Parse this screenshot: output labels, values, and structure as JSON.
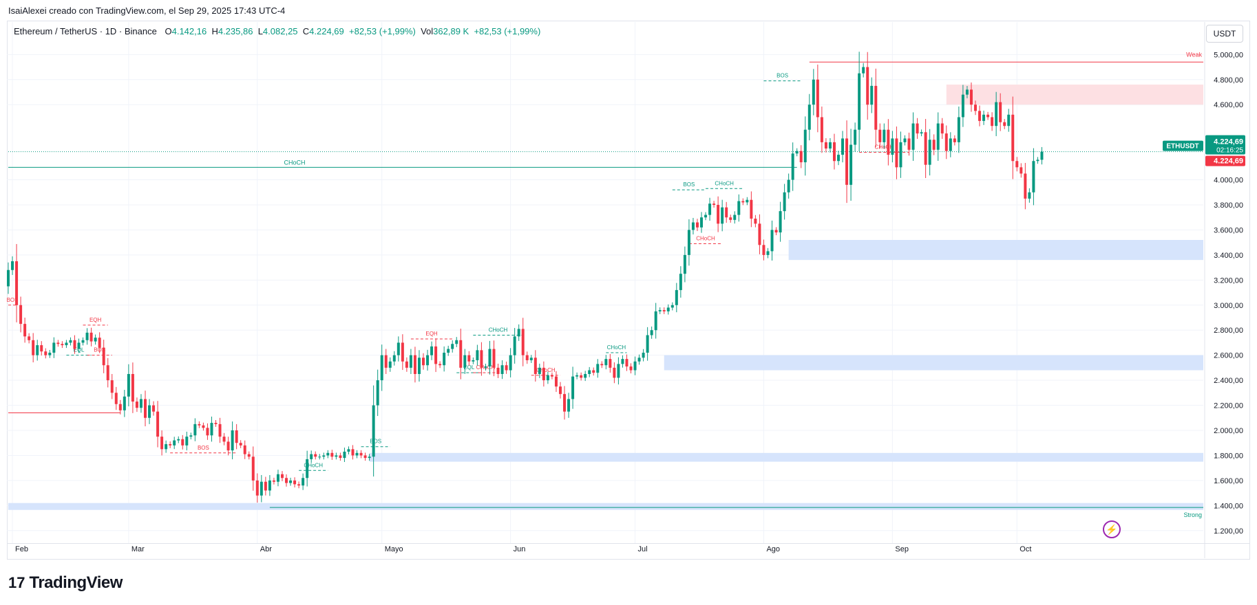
{
  "header": {
    "creator_note": "IsaiAlexei creado con TradingView.com, el Sep 29, 2025 17:43 UTC-4",
    "symbol": "Ethereum / TetherUS · 1D · Binance",
    "o_label": "O",
    "o_value": "4.142,16",
    "h_label": "H",
    "h_value": "4.235,86",
    "l_label": "L",
    "l_value": "4.082,25",
    "c_label": "C",
    "c_value": "4.224,69",
    "change": "+82,53 (+1,99%)",
    "vol_label": "Vol",
    "vol_value": "362,89 K",
    "vol_change": "+82,53 (+1,99%)"
  },
  "currency_unit": "USDT",
  "price_tag": {
    "symbol": "ETHUSDT",
    "price": "4.224,69",
    "countdown": "02:16:25",
    "price_red": "4.224,69"
  },
  "brand": {
    "name": "TradingView",
    "mark": "17"
  },
  "colors": {
    "up": "#089981",
    "down": "#f23645",
    "zone_blue": "#d6e4fc",
    "zone_red": "#fde0e3",
    "grid": "#f0f3fa"
  },
  "chart_data": {
    "type": "candlestick",
    "title": "Ethereum / TetherUS · 1D · Binance",
    "ylim": [
      1100,
      5150
    ],
    "y_ticks": [
      {
        "v": 5000,
        "label": "5.000,00"
      },
      {
        "v": 4800,
        "label": "4.800,00"
      },
      {
        "v": 4600,
        "label": "4.600,00"
      },
      {
        "v": 4000,
        "label": "4.000,00"
      },
      {
        "v": 3800,
        "label": "3.800,00"
      },
      {
        "v": 3600,
        "label": "3.600,00"
      },
      {
        "v": 3400,
        "label": "3.400,00"
      },
      {
        "v": 3200,
        "label": "3.200,00"
      },
      {
        "v": 3000,
        "label": "3.000,00"
      },
      {
        "v": 2800,
        "label": "2.800,00"
      },
      {
        "v": 2600,
        "label": "2.600,00"
      },
      {
        "v": 2400,
        "label": "2.400,00"
      },
      {
        "v": 2200,
        "label": "2.200,00"
      },
      {
        "v": 2000,
        "label": "2.000,00"
      },
      {
        "v": 1800,
        "label": "1.800,00"
      },
      {
        "v": 1600,
        "label": "1.600,00"
      },
      {
        "v": 1400,
        "label": "1.400,00"
      },
      {
        "v": 1200,
        "label": "1.200,00"
      }
    ],
    "x_ticks": [
      {
        "d": 1,
        "label": "Feb"
      },
      {
        "d": 29,
        "label": "Mar"
      },
      {
        "d": 60,
        "label": "Abr"
      },
      {
        "d": 90,
        "label": "Mayo"
      },
      {
        "d": 121,
        "label": "Jun"
      },
      {
        "d": 151,
        "label": "Jul"
      },
      {
        "d": 182,
        "label": "Ago"
      },
      {
        "d": 213,
        "label": "Sep"
      },
      {
        "d": 243,
        "label": "Oct"
      }
    ],
    "closes": [
      3280,
      3350,
      3000,
      2850,
      2750,
      2720,
      2600,
      2680,
      2630,
      2600,
      2620,
      2700,
      2690,
      2680,
      2700,
      2720,
      2650,
      2700,
      2720,
      2780,
      2710,
      2740,
      2660,
      2520,
      2400,
      2300,
      2210,
      2160,
      2270,
      2450,
      2230,
      2180,
      2250,
      2100,
      2200,
      2150,
      1950,
      1850,
      1890,
      1880,
      1920,
      1930,
      1880,
      1950,
      1960,
      2050,
      2040,
      2020,
      1960,
      2060,
      2050,
      1950,
      1910,
      1840,
      2000,
      1900,
      1880,
      1810,
      1790,
      1600,
      1480,
      1590,
      1520,
      1600,
      1590,
      1650,
      1620,
      1580,
      1600,
      1570,
      1560,
      1620,
      1770,
      1810,
      1790,
      1790,
      1800,
      1820,
      1790,
      1800,
      1780,
      1830,
      1850,
      1800,
      1820,
      1800,
      1780,
      1790,
      2200,
      2400,
      2600,
      2500,
      2550,
      2600,
      2700,
      2550,
      2500,
      2600,
      2450,
      2580,
      2520,
      2600,
      2670,
      2530,
      2520,
      2620,
      2650,
      2690,
      2720,
      2500,
      2600,
      2550,
      2560,
      2640,
      2500,
      2510,
      2650,
      2500,
      2450,
      2520,
      2480,
      2600,
      2750,
      2810,
      2600,
      2560,
      2580,
      2450,
      2500,
      2400,
      2440,
      2430,
      2350,
      2290,
      2150,
      2250,
      2430,
      2440,
      2420,
      2450,
      2480,
      2460,
      2530,
      2520,
      2570,
      2500,
      2420,
      2530,
      2570,
      2510,
      2480,
      2550,
      2580,
      2620,
      2760,
      2800,
      2950,
      2960,
      2950,
      2980,
      3000,
      3120,
      3250,
      3400,
      3600,
      3660,
      3620,
      3700,
      3720,
      3810,
      3800,
      3650,
      3780,
      3700,
      3680,
      3720,
      3830,
      3820,
      3840,
      3690,
      3650,
      3480,
      3400,
      3430,
      3600,
      3580,
      3750,
      3900,
      4000,
      4210,
      4230,
      4140,
      4400,
      4600,
      4800,
      4500,
      4300,
      4250,
      4300,
      4150,
      4200,
      4330,
      3960,
      4280,
      4400,
      4850,
      4900,
      4600,
      4750,
      4400,
      4300,
      4400,
      4200,
      4330,
      4100,
      4300,
      4330,
      4240,
      4450,
      4370,
      4380,
      4120,
      4320,
      4240,
      4450,
      4370,
      4230,
      4330,
      4300,
      4500,
      4680,
      4720,
      4600,
      4550,
      4470,
      4520,
      4500,
      4430,
      4620,
      4460,
      4430,
      4520,
      4150,
      4100,
      4050,
      3850,
      3900,
      4150,
      4160,
      4224
    ],
    "zones": [
      {
        "type": "demand",
        "y1": 1365,
        "y2": 1420,
        "from": 0,
        "to": "end"
      },
      {
        "type": "demand",
        "y1": 1750,
        "y2": 1820,
        "from": 87,
        "to": "end"
      },
      {
        "type": "demand",
        "y1": 2480,
        "y2": 2600,
        "from": 158,
        "to": "end"
      },
      {
        "type": "demand",
        "y1": 3360,
        "y2": 3520,
        "from": 188,
        "to": "end"
      },
      {
        "type": "supply",
        "y1": 4600,
        "y2": 4760,
        "from": 226,
        "to": "end"
      }
    ],
    "levels": [
      {
        "label": "CHoCH",
        "price": 4100,
        "from": 0,
        "to": 190,
        "color": "#089981",
        "style": "solid",
        "label_at": 69
      },
      {
        "label": "",
        "price": 2140,
        "from": 0,
        "to": 27,
        "color": "#f23645",
        "style": "solid"
      },
      {
        "label": "Weak",
        "price": 4940,
        "from": 193,
        "to": "end",
        "color": "#f23645",
        "style": "solid",
        "label_side": "right"
      },
      {
        "label": "Strong",
        "price": 1385,
        "from": 63,
        "to": "end",
        "color": "#089981",
        "style": "solid",
        "label_side": "right"
      },
      {
        "label": "",
        "price": 4224.69,
        "from": 0,
        "to": "end",
        "color": "#089981",
        "style": "dotted"
      }
    ],
    "structure_marks": [
      {
        "label": "BOS",
        "price": 4790,
        "from": 182,
        "to": 191,
        "color": "#089981"
      },
      {
        "label": "BOS",
        "price": 3920,
        "from": 160,
        "to": 168,
        "color": "#089981"
      },
      {
        "label": "CHoCH",
        "price": 3930,
        "from": 168,
        "to": 177,
        "color": "#089981"
      },
      {
        "label": "CHoCH",
        "price": 3490,
        "from": 164,
        "to": 172,
        "color": "#f23645"
      },
      {
        "label": "CHoCH",
        "price": 4220,
        "from": 205,
        "to": 217,
        "color": "#f23645"
      },
      {
        "label": "BOS",
        "price": 1870,
        "from": 85,
        "to": 92,
        "color": "#089981"
      },
      {
        "label": "CHoCH",
        "price": 1680,
        "from": 70,
        "to": 77,
        "color": "#089981"
      },
      {
        "label": "BOS",
        "price": 1820,
        "from": 39,
        "to": 55,
        "color": "#f23645"
      },
      {
        "label": "EQH",
        "price": 2840,
        "from": 18,
        "to": 24,
        "color": "#f23645"
      },
      {
        "label": "EQL",
        "price": 2600,
        "from": 14,
        "to": 20,
        "color": "#089981"
      },
      {
        "label": "BOS",
        "price": 2600,
        "from": 19,
        "to": 25,
        "color": "#f23645"
      },
      {
        "label": "EQH",
        "price": 2730,
        "from": 97,
        "to": 107,
        "color": "#f23645"
      },
      {
        "label": "CHoCH",
        "price": 2760,
        "from": 112,
        "to": 124,
        "color": "#089981"
      },
      {
        "label": "EQL",
        "price": 2460,
        "from": 108,
        "to": 114,
        "color": "#089981"
      },
      {
        "label": "CHoCH",
        "price": 2460,
        "from": 112,
        "to": 118,
        "color": "#f23645"
      },
      {
        "label": "CHoCH",
        "price": 2440,
        "from": 126,
        "to": 133,
        "color": "#f23645"
      },
      {
        "label": "CHoCH",
        "price": 2620,
        "from": 144,
        "to": 149,
        "color": "#089981"
      },
      {
        "label": "BOS",
        "price": 3000,
        "from": 0,
        "to": 2,
        "color": "#f23645"
      }
    ]
  }
}
